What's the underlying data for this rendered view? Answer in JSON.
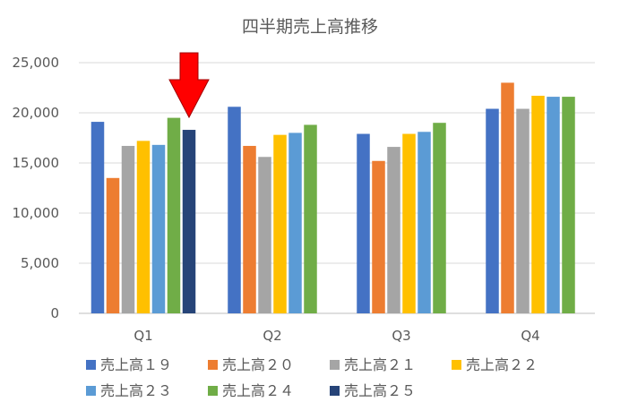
{
  "chart_data": {
    "type": "bar",
    "title": "四半期売上高推移",
    "categories": [
      "Q1",
      "Q2",
      "Q3",
      "Q4"
    ],
    "ylim": [
      0,
      25000
    ],
    "yticks": [
      0,
      5000,
      10000,
      15000,
      20000,
      25000
    ],
    "ytick_labels": [
      "0",
      "5,000",
      "10,000",
      "15,000",
      "20,000",
      "25,000"
    ],
    "grid": true,
    "legend_position": "bottom",
    "series": [
      {
        "name": "売上高１９",
        "color": "#4472C4",
        "values": [
          19100,
          20600,
          17900,
          20400
        ]
      },
      {
        "name": "売上高２０",
        "color": "#ED7D31",
        "values": [
          13500,
          16700,
          15200,
          23000
        ]
      },
      {
        "name": "売上高２１",
        "color": "#A5A5A5",
        "values": [
          16700,
          15600,
          16600,
          20400
        ]
      },
      {
        "name": "売上高２２",
        "color": "#FFC000",
        "values": [
          17200,
          17800,
          17900,
          21700
        ]
      },
      {
        "name": "売上高２３",
        "color": "#5B9BD5",
        "values": [
          16800,
          18000,
          18100,
          21600
        ]
      },
      {
        "name": "売上高２４",
        "color": "#70AD47",
        "values": [
          19500,
          18800,
          19000,
          21600
        ]
      },
      {
        "name": "売上高２５",
        "color": "#264478",
        "values": [
          18300,
          null,
          null,
          null
        ]
      }
    ],
    "annotations": [
      {
        "type": "arrow",
        "color": "#FF0000",
        "target_series": 6,
        "target_category": 0
      }
    ]
  }
}
